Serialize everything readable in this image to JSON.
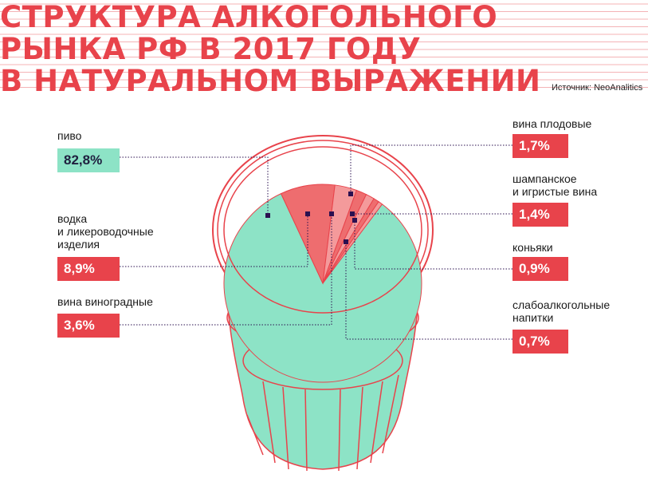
{
  "title_lines": [
    "СТРУКТУРА АЛКОГОЛЬНОГО",
    "РЫНКА РФ В 2017 ГОДУ",
    "В НАТУРАЛЬНОМ ВЫРАЖЕНИИ"
  ],
  "source": "Источник: NeoAnalitics",
  "colors": {
    "accent": "#e8434b",
    "beer": "#8de3c6",
    "slice_dark": "#ee6d6f",
    "slice_light": "#f49a9b",
    "marker": "#2b1050"
  },
  "chart_data": {
    "type": "pie",
    "categories": [
      "пиво",
      "водка и ликероводочные изделия",
      "вина виноградные",
      "вина плодовые",
      "шампанское и игристые вина",
      "коньяки",
      "слабоалкогольные напитки"
    ],
    "values": [
      82.8,
      8.9,
      3.6,
      1.7,
      1.4,
      0.9,
      0.7
    ],
    "unit": "%"
  },
  "labels": {
    "beer": {
      "name": "пиво",
      "value": "82,8%"
    },
    "vodka": {
      "name": "водка\nи ликероводочные\nизделия",
      "value": "8,9%"
    },
    "grape_wine": {
      "name": "вина виноградные",
      "value": "3,6%"
    },
    "fruit_wine": {
      "name": "вина плодовые",
      "value": "1,7%"
    },
    "champagne": {
      "name": "шампанское\nи игристые вина",
      "value": "1,4%"
    },
    "cognac": {
      "name": "коньяки",
      "value": "0,9%"
    },
    "low_alcohol": {
      "name": "слабоалкогольные\nнапитки",
      "value": "0,7%"
    }
  }
}
